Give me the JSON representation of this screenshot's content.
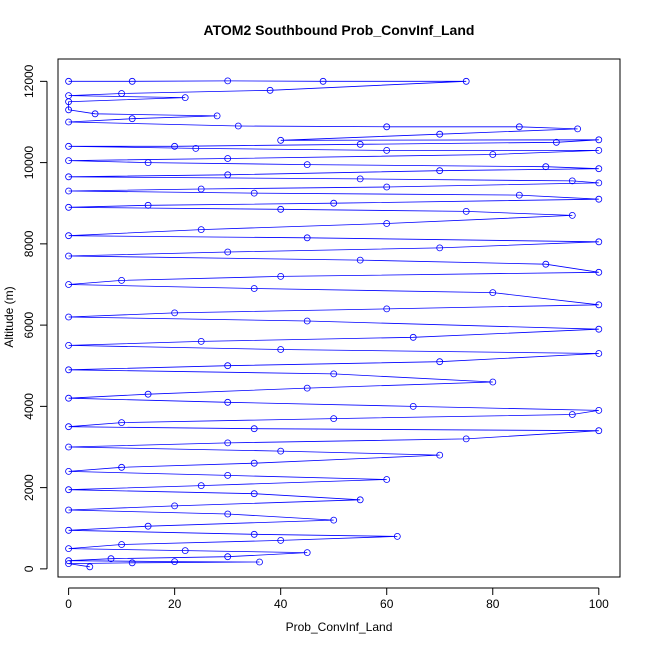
{
  "chart_data": {
    "type": "line",
    "title": "ATOM2 Southbound Prob_ConvInf_Land",
    "xlabel": "Prob_ConvInf_Land",
    "ylabel": "Altitude (m)",
    "xlim": [
      -2,
      104
    ],
    "ylim": [
      -200,
      12550
    ],
    "x_ticks": [
      0,
      20,
      40,
      60,
      80,
      100
    ],
    "x_tick_labels": [
      "0",
      "20",
      "40",
      "60",
      "80",
      "100"
    ],
    "y_ticks": [
      0,
      2000,
      4000,
      6000,
      8000,
      10000,
      12000
    ],
    "y_tick_labels": [
      "0",
      "2000",
      "4000",
      "6000",
      "8000",
      "10000",
      "12000"
    ],
    "grid": false,
    "marker": "open-circle",
    "series": [
      {
        "color": "#0000ff",
        "points": [
          [
            0,
            12000
          ],
          [
            12,
            12000
          ],
          [
            30,
            12010
          ],
          [
            48,
            12000
          ],
          [
            75,
            12000
          ],
          [
            38,
            11780
          ],
          [
            10,
            11700
          ],
          [
            0,
            11650
          ],
          [
            22,
            11600
          ],
          [
            0,
            11500
          ],
          [
            0,
            11300
          ],
          [
            5,
            11200
          ],
          [
            28,
            11150
          ],
          [
            12,
            11080
          ],
          [
            0,
            11000
          ],
          [
            32,
            10900
          ],
          [
            60,
            10880
          ],
          [
            85,
            10880
          ],
          [
            96,
            10830
          ],
          [
            70,
            10700
          ],
          [
            40,
            10550
          ],
          [
            100,
            10560
          ],
          [
            92,
            10500
          ],
          [
            55,
            10450
          ],
          [
            20,
            10400
          ],
          [
            0,
            10400
          ],
          [
            24,
            10350
          ],
          [
            60,
            10300
          ],
          [
            100,
            10300
          ],
          [
            80,
            10200
          ],
          [
            30,
            10100
          ],
          [
            0,
            10050
          ],
          [
            15,
            10000
          ],
          [
            45,
            9950
          ],
          [
            90,
            9900
          ],
          [
            100,
            9850
          ],
          [
            70,
            9800
          ],
          [
            30,
            9700
          ],
          [
            0,
            9650
          ],
          [
            55,
            9600
          ],
          [
            95,
            9550
          ],
          [
            100,
            9500
          ],
          [
            60,
            9400
          ],
          [
            25,
            9350
          ],
          [
            0,
            9300
          ],
          [
            35,
            9250
          ],
          [
            85,
            9200
          ],
          [
            100,
            9100
          ],
          [
            50,
            9000
          ],
          [
            15,
            8950
          ],
          [
            0,
            8900
          ],
          [
            40,
            8850
          ],
          [
            75,
            8800
          ],
          [
            95,
            8700
          ],
          [
            60,
            8500
          ],
          [
            25,
            8350
          ],
          [
            0,
            8200
          ],
          [
            45,
            8150
          ],
          [
            100,
            8050
          ],
          [
            70,
            7900
          ],
          [
            30,
            7800
          ],
          [
            0,
            7700
          ],
          [
            55,
            7600
          ],
          [
            90,
            7500
          ],
          [
            100,
            7300
          ],
          [
            40,
            7200
          ],
          [
            10,
            7100
          ],
          [
            0,
            7000
          ],
          [
            35,
            6900
          ],
          [
            80,
            6800
          ],
          [
            100,
            6500
          ],
          [
            60,
            6400
          ],
          [
            20,
            6300
          ],
          [
            0,
            6200
          ],
          [
            45,
            6100
          ],
          [
            100,
            5900
          ],
          [
            65,
            5700
          ],
          [
            25,
            5600
          ],
          [
            0,
            5500
          ],
          [
            40,
            5400
          ],
          [
            100,
            5300
          ],
          [
            70,
            5100
          ],
          [
            30,
            5000
          ],
          [
            0,
            4900
          ],
          [
            50,
            4800
          ],
          [
            80,
            4600
          ],
          [
            45,
            4450
          ],
          [
            15,
            4300
          ],
          [
            0,
            4200
          ],
          [
            30,
            4100
          ],
          [
            65,
            4000
          ],
          [
            100,
            3900
          ],
          [
            95,
            3800
          ],
          [
            50,
            3700
          ],
          [
            10,
            3600
          ],
          [
            0,
            3500
          ],
          [
            35,
            3450
          ],
          [
            100,
            3400
          ],
          [
            75,
            3200
          ],
          [
            30,
            3100
          ],
          [
            0,
            3000
          ],
          [
            40,
            2900
          ],
          [
            70,
            2800
          ],
          [
            35,
            2600
          ],
          [
            10,
            2500
          ],
          [
            0,
            2400
          ],
          [
            30,
            2300
          ],
          [
            60,
            2200
          ],
          [
            25,
            2050
          ],
          [
            0,
            1950
          ],
          [
            35,
            1850
          ],
          [
            55,
            1700
          ],
          [
            20,
            1550
          ],
          [
            0,
            1450
          ],
          [
            30,
            1350
          ],
          [
            50,
            1200
          ],
          [
            15,
            1050
          ],
          [
            0,
            950
          ],
          [
            35,
            850
          ],
          [
            62,
            800
          ],
          [
            40,
            700
          ],
          [
            10,
            600
          ],
          [
            0,
            500
          ],
          [
            22,
            450
          ],
          [
            45,
            400
          ],
          [
            30,
            300
          ],
          [
            8,
            250
          ],
          [
            0,
            200
          ],
          [
            20,
            180
          ],
          [
            36,
            170
          ],
          [
            12,
            150
          ],
          [
            0,
            130
          ],
          [
            4,
            50
          ]
        ]
      }
    ]
  }
}
